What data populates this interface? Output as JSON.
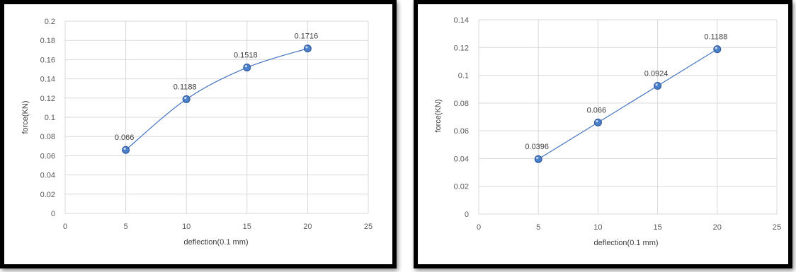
{
  "colors": {
    "frame": "#000000",
    "grid": "#d9d9d9",
    "line": "#4472c4",
    "marker": "#4a7fc9",
    "marker_edge": "#2f5597",
    "text": "#595959"
  },
  "chart_data": [
    {
      "type": "scatter",
      "smooth": true,
      "xlabel": "deflection(0.1 mm)",
      "ylabel": "force(KN)",
      "xlim": [
        0,
        25
      ],
      "ylim": [
        0,
        0.2
      ],
      "x_ticks": [
        "0",
        "5",
        "10",
        "15",
        "20",
        "25"
      ],
      "y_ticks": [
        "0",
        "0.02",
        "0.04",
        "0.06",
        "0.08",
        "0.1",
        "0.12",
        "0.14",
        "0.16",
        "0.18",
        "0.2"
      ],
      "grid": "vertical and horizontal",
      "legend": "none",
      "x": [
        5,
        10,
        15,
        20
      ],
      "series": [
        {
          "values": [
            0.066,
            0.1188,
            0.1518,
            0.1716
          ],
          "labels": [
            "0.066",
            "0.1188",
            "0.1518",
            "0.1716"
          ]
        }
      ]
    },
    {
      "type": "scatter",
      "smooth": false,
      "xlabel": "deflection(0.1 mm)",
      "ylabel": "force(KN)",
      "xlim": [
        0,
        25
      ],
      "ylim": [
        0,
        0.14
      ],
      "x_ticks": [
        "0",
        "5",
        "10",
        "15",
        "20",
        "25"
      ],
      "y_ticks": [
        "0",
        "0.02",
        "0.04",
        "0.06",
        "0.08",
        "0.1",
        "0.12",
        "0.14"
      ],
      "grid": "vertical and horizontal",
      "legend": "none",
      "x": [
        5,
        10,
        15,
        20
      ],
      "series": [
        {
          "values": [
            0.0396,
            0.066,
            0.0924,
            0.1188
          ],
          "labels": [
            "0.0396",
            "0.066",
            "0.0924",
            "0.1188"
          ]
        }
      ]
    }
  ]
}
